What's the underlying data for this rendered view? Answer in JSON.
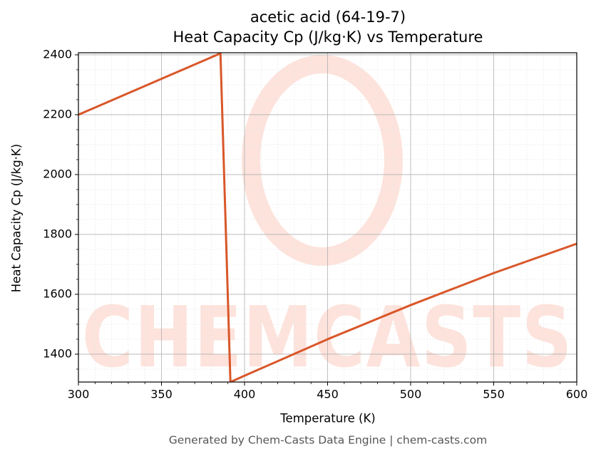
{
  "chart_data": {
    "type": "line",
    "title": "acetic acid (64-19-7)",
    "subtitle": "Heat Capacity Cp (J/kg·K) vs Temperature",
    "x_label": "Temperature (K)",
    "y_label": "Heat Capacity Cp (J/kg·K)",
    "footer": "Generated by Chem-Casts Data Engine | chem-casts.com",
    "watermark": "CHEMCASTS",
    "x": [
      300,
      385.5,
      391.5,
      400,
      450,
      500,
      550,
      600
    ],
    "series": [
      {
        "name": "Cp",
        "color": "#d9572a",
        "values": [
          2200,
          2405,
          1307,
          1328,
          1450,
          1564,
          1671,
          1769
        ]
      }
    ],
    "xlim": [
      300,
      600
    ],
    "xticks": [
      300,
      350,
      400,
      450,
      500,
      550,
      600
    ],
    "ylim": [
      1307,
      2407
    ],
    "yticks": [
      1400,
      1600,
      1800,
      2000,
      2200,
      2400
    ],
    "grid": true,
    "minor_grid": true
  }
}
